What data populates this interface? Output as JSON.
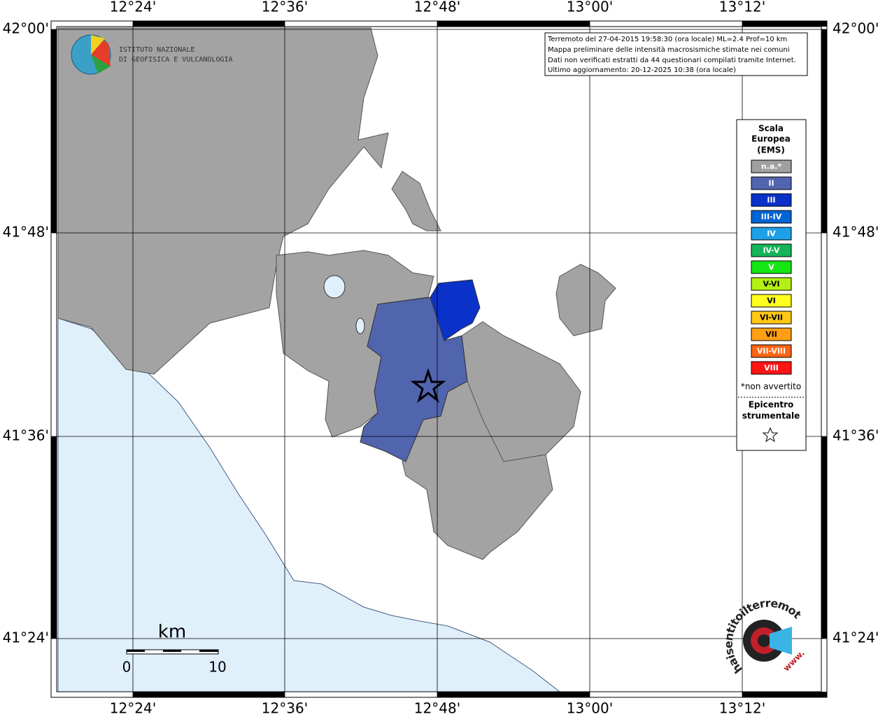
{
  "info": [
    "Terremoto del 27-04-2015 19:58:30 (ora locale) ML=2.4 Prof=10 km",
    "Mappa preliminare delle intensità macrosismiche stimate nei comuni",
    "Dati non verificati estratti da 44 questionari compilati tramite Internet.",
    "Ultimo aggiornamento: 20-12-2025 10:38 (ora locale)"
  ],
  "logo": [
    "ISTITUTO NAZIONALE",
    "DI GEOFISICA E VULCANOLOGIA"
  ],
  "lon_labels": [
    "12°24'",
    "12°36'",
    "12°48'",
    "13°00'",
    "13°12'"
  ],
  "lat_labels": [
    "42°00'",
    "41°48'",
    "41°36'",
    "41°24'"
  ],
  "legend": {
    "title": [
      "Scala",
      "Europea",
      "(EMS)"
    ],
    "classes": [
      {
        "label": "n.a.*",
        "color": "#a0a0a0"
      },
      {
        "label": "II",
        "color": "#5164ae"
      },
      {
        "label": "III",
        "color": "#0a32c8"
      },
      {
        "label": "III-IV",
        "color": "#0064d2"
      },
      {
        "label": "IV",
        "color": "#1ea0e6"
      },
      {
        "label": "IV-V",
        "color": "#14b45a"
      },
      {
        "label": "V",
        "color": "#14e614"
      },
      {
        "label": "V-VI",
        "color": "#b4f014"
      },
      {
        "label": "VI",
        "color": "#ffff1e"
      },
      {
        "label": "VI-VII",
        "color": "#ffc814"
      },
      {
        "label": "VII",
        "color": "#ffa014"
      },
      {
        "label": "VII-VIII",
        "color": "#ff6414"
      },
      {
        "label": "VIII",
        "color": "#ff1414"
      }
    ],
    "note": "*non avvertito",
    "epicenter": [
      "Epicentro",
      "strumentale"
    ]
  },
  "scale": {
    "unit": "km",
    "ticks": [
      "0",
      "10"
    ]
  },
  "badge": {
    "site": "haisentitoilterremoto.it",
    "prefix": "www."
  }
}
